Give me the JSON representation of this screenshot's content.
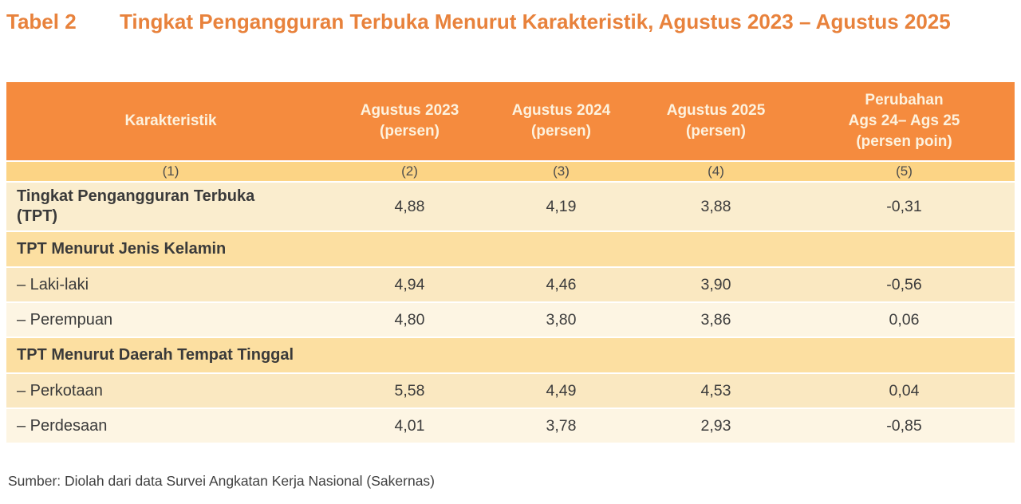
{
  "title": {
    "label": "Tabel 2",
    "text": "Tingkat Pengangguran Terbuka Menurut Karakteristik, Agustus 2023 – Agustus 2025"
  },
  "table": {
    "columns": [
      {
        "line1": "Karakteristik",
        "line2": "",
        "line3": "",
        "num": "(1)"
      },
      {
        "line1": "Agustus 2023",
        "line2": "(persen)",
        "line3": "",
        "num": "(2)"
      },
      {
        "line1": "Agustus 2024",
        "line2": "(persen)",
        "line3": "",
        "num": "(3)"
      },
      {
        "line1": "Agustus 2025",
        "line2": "(persen)",
        "line3": "",
        "num": "(4)"
      },
      {
        "line1": "Perubahan",
        "line2": "Ags 24– Ags 25",
        "line3": "(persen poin)",
        "num": "(5)"
      }
    ],
    "rows": [
      {
        "type": "data",
        "label": "Tingkat Pengangguran Terbuka (TPT)",
        "values": [
          "4,88",
          "4,19",
          "3,88",
          "-0,31"
        ]
      },
      {
        "type": "section",
        "label": "TPT Menurut Jenis Kelamin",
        "values": [
          "",
          "",
          "",
          ""
        ]
      },
      {
        "type": "data",
        "label": "– Laki-laki",
        "values": [
          "4,94",
          "4,46",
          "3,90",
          "-0,56"
        ]
      },
      {
        "type": "data",
        "label": "– Perempuan",
        "values": [
          "4,80",
          "3,80",
          "3,86",
          "0,06"
        ]
      },
      {
        "type": "section",
        "label": "TPT Menurut Daerah Tempat Tinggal",
        "values": [
          "",
          "",
          "",
          ""
        ]
      },
      {
        "type": "data",
        "label": "– Perkotaan",
        "values": [
          "5,58",
          "4,49",
          "4,53",
          "0,04"
        ]
      },
      {
        "type": "data",
        "label": "– Perdesaan",
        "values": [
          "4,01",
          "3,78",
          "2,93",
          "-0,85"
        ]
      }
    ]
  },
  "source": "Sumber: Diolah dari data Survei Angkatan Kerja Nasional (Sakernas)",
  "colors": {
    "title_orange": "#e8823c",
    "header_bg": "#f58b3e",
    "header_text": "#fdf2de",
    "subheader_bg": "#fcd485",
    "section_bg": "#fcdfa1",
    "row_dark": "#fae8c1",
    "row_light": "#fdf5e3",
    "row_tpt": "#faedce"
  }
}
